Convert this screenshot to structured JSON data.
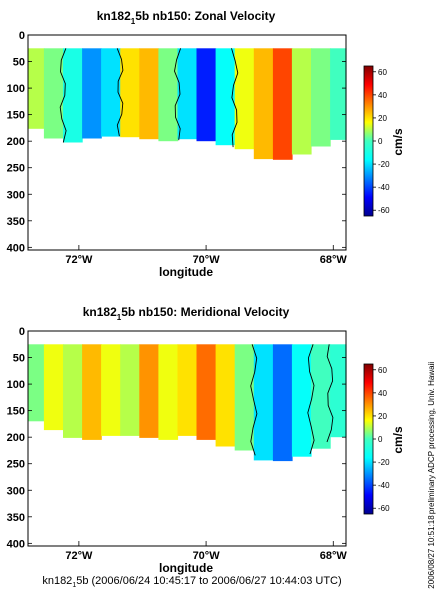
{
  "chart_data": [
    {
      "type": "heatmap",
      "title_main": "kn182",
      "title_sub": "1",
      "title_rest": "5b nb150: Zonal Velocity",
      "xlabel": "longitude",
      "ylabel": "",
      "x_ticks": [
        -72,
        -70,
        -68
      ],
      "x_tick_labels": [
        "72°W",
        "70°W",
        "68°W"
      ],
      "xlim": [
        -72.8,
        -67.8
      ],
      "y_ticks": [
        0,
        50,
        100,
        150,
        200,
        250,
        300,
        350,
        400
      ],
      "y_tick_labels": [
        "0",
        "50",
        "100",
        "150",
        "200",
        "250",
        "300",
        "350",
        "400"
      ],
      "ylim": [
        0,
        405
      ],
      "colorbar": {
        "label": "cm/s",
        "ticks": [
          60,
          40,
          20,
          0,
          -20,
          -40,
          -60
        ],
        "range": [
          -65,
          65
        ]
      },
      "depth_range": [
        25,
        200
      ],
      "bottom_profile": [
        [
          -72.8,
          170
        ],
        [
          -72.5,
          190
        ],
        [
          -72.2,
          205
        ],
        [
          -71.8,
          195
        ],
        [
          -71.4,
          190
        ],
        [
          -71.0,
          195
        ],
        [
          -70.6,
          200
        ],
        [
          -70.2,
          195
        ],
        [
          -69.8,
          205
        ],
        [
          -69.4,
          215
        ],
        [
          -69.0,
          240
        ],
        [
          -68.6,
          230
        ],
        [
          -68.3,
          215
        ],
        [
          -68.0,
          200
        ],
        [
          -67.8,
          195
        ]
      ],
      "bands": [
        {
          "lon": -72.7,
          "v": 10
        },
        {
          "lon": -72.4,
          "v": 5
        },
        {
          "lon": -72.1,
          "v": -10
        },
        {
          "lon": -71.8,
          "v": -30
        },
        {
          "lon": -71.5,
          "v": -20
        },
        {
          "lon": -71.2,
          "v": 20
        },
        {
          "lon": -70.9,
          "v": 25
        },
        {
          "lon": -70.6,
          "v": 5
        },
        {
          "lon": -70.3,
          "v": -20
        },
        {
          "lon": -70.0,
          "v": -45
        },
        {
          "lon": -69.7,
          "v": -15
        },
        {
          "lon": -69.4,
          "v": 15
        },
        {
          "lon": -69.1,
          "v": 25
        },
        {
          "lon": -68.8,
          "v": 40
        },
        {
          "lon": -68.5,
          "v": 10
        },
        {
          "lon": -68.2,
          "v": 5
        },
        {
          "lon": -67.9,
          "v": 0
        }
      ]
    },
    {
      "type": "heatmap",
      "title_main": "kn182",
      "title_sub": "1",
      "title_rest": "5b nb150: Meridional Velocity",
      "xlabel": "longitude",
      "ylabel": "",
      "x_ticks": [
        -72,
        -70,
        -68
      ],
      "x_tick_labels": [
        "72°W",
        "70°W",
        "68°W"
      ],
      "xlim": [
        -72.8,
        -67.8
      ],
      "y_ticks": [
        0,
        50,
        100,
        150,
        200,
        250,
        300,
        350,
        400
      ],
      "y_tick_labels": [
        "0",
        "50",
        "100",
        "150",
        "200",
        "250",
        "300",
        "350",
        "400"
      ],
      "ylim": [
        0,
        405
      ],
      "colorbar": {
        "label": "cm/s",
        "ticks": [
          60,
          40,
          20,
          0,
          -20,
          -40,
          -60
        ],
        "range": [
          -65,
          65
        ]
      },
      "depth_range": [
        25,
        200
      ],
      "bottom_profile": [
        [
          -72.8,
          165
        ],
        [
          -72.5,
          180
        ],
        [
          -72.2,
          200
        ],
        [
          -71.8,
          205
        ],
        [
          -71.4,
          195
        ],
        [
          -71.0,
          200
        ],
        [
          -70.6,
          205
        ],
        [
          -70.2,
          195
        ],
        [
          -69.8,
          215
        ],
        [
          -69.4,
          225
        ],
        [
          -69.0,
          250
        ],
        [
          -68.6,
          240
        ],
        [
          -68.3,
          230
        ],
        [
          -68.0,
          205
        ],
        [
          -67.8,
          195
        ]
      ],
      "bands": [
        {
          "lon": -72.7,
          "v": 5
        },
        {
          "lon": -72.4,
          "v": 15
        },
        {
          "lon": -72.1,
          "v": 10
        },
        {
          "lon": -71.8,
          "v": 25
        },
        {
          "lon": -71.5,
          "v": 15
        },
        {
          "lon": -71.2,
          "v": 10
        },
        {
          "lon": -70.9,
          "v": 30
        },
        {
          "lon": -70.6,
          "v": 15
        },
        {
          "lon": -70.3,
          "v": 20
        },
        {
          "lon": -70.0,
          "v": 35
        },
        {
          "lon": -69.7,
          "v": 20
        },
        {
          "lon": -69.4,
          "v": 5
        },
        {
          "lon": -69.1,
          "v": -20
        },
        {
          "lon": -68.8,
          "v": -35
        },
        {
          "lon": -68.5,
          "v": -15
        },
        {
          "lon": -68.2,
          "v": 0
        },
        {
          "lon": -67.9,
          "v": -5
        }
      ]
    }
  ],
  "footer": {
    "main": "kn182",
    "sub": "1",
    "rest": "5b (2006/06/24 10:45:17 to 2006/06/27 10:44:03 UTC)"
  },
  "side_text": {
    "credit": "preliminary ADCP processing,  Univ. Hawaii",
    "timestamp": "2006/08/27 10:51:18"
  }
}
